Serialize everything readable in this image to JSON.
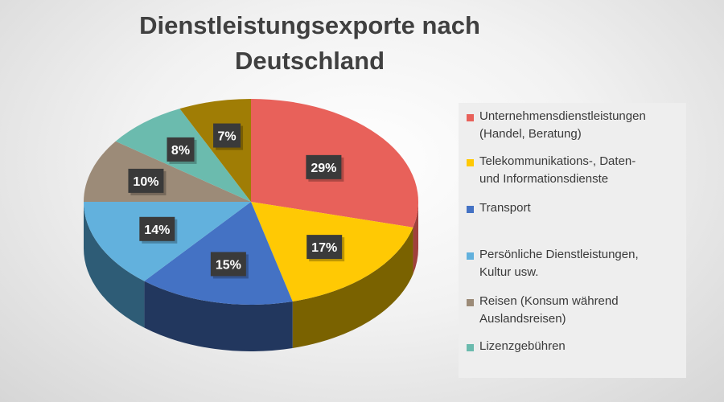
{
  "chart_data": {
    "type": "pie",
    "title": "Dienstleistungsexporte nach Deutschland",
    "start_angle_deg": 0,
    "direction": "clockwise",
    "slices": [
      {
        "label": "Unternehmensdienstleistungen (Handel, Beratung)",
        "value": 29,
        "display": "29%",
        "color": "#E8615A",
        "side": "#A0403C"
      },
      {
        "label": "Telekommunikations-, Daten- und Informationsdienste",
        "value": 17,
        "display": "17%",
        "color": "#FFC904",
        "side": "#7A6200"
      },
      {
        "label": "Transport",
        "value": 15,
        "display": "15%",
        "color": "#4472C4",
        "side": "#22375E"
      },
      {
        "label": "Persönliche Dienstleistungen, Kultur usw.",
        "value": 14,
        "display": "14%",
        "color": "#62B1DD",
        "side": "#2E5C76"
      },
      {
        "label": "Reisen (Konsum während Auslandsreisen)",
        "value": 10,
        "display": "10%",
        "color": "#9C8B78",
        "side": "#5C5246"
      },
      {
        "label": "Lizenzgebühren",
        "value": 8,
        "display": "8%",
        "color": "#6BBBAE",
        "side": "#3C6D65"
      },
      {
        "label": "",
        "value": 7,
        "display": "7%",
        "color": "#A07D05",
        "side": "#5E4903"
      }
    ]
  },
  "legend": {
    "items": [
      {
        "line1": "Unternehmensdienstleistungen",
        "line2": "(Handel, Beratung)",
        "color": "#E8615A"
      },
      {
        "line1": "Telekommunikations-, Daten-",
        "line2": "und Informationsdienste",
        "color": "#FFC904"
      },
      {
        "line1": "Transport",
        "line2": "",
        "color": "#4472C4"
      },
      {
        "line1": "Persönliche Dienstleistungen,",
        "line2": "Kultur usw.",
        "color": "#62B1DD"
      },
      {
        "line1": "Reisen (Konsum während",
        "line2": "Auslandsreisen)",
        "color": "#9C8B78"
      },
      {
        "line1": "Lizenzgebühren",
        "line2": "",
        "color": "#6BBBAE"
      }
    ]
  }
}
